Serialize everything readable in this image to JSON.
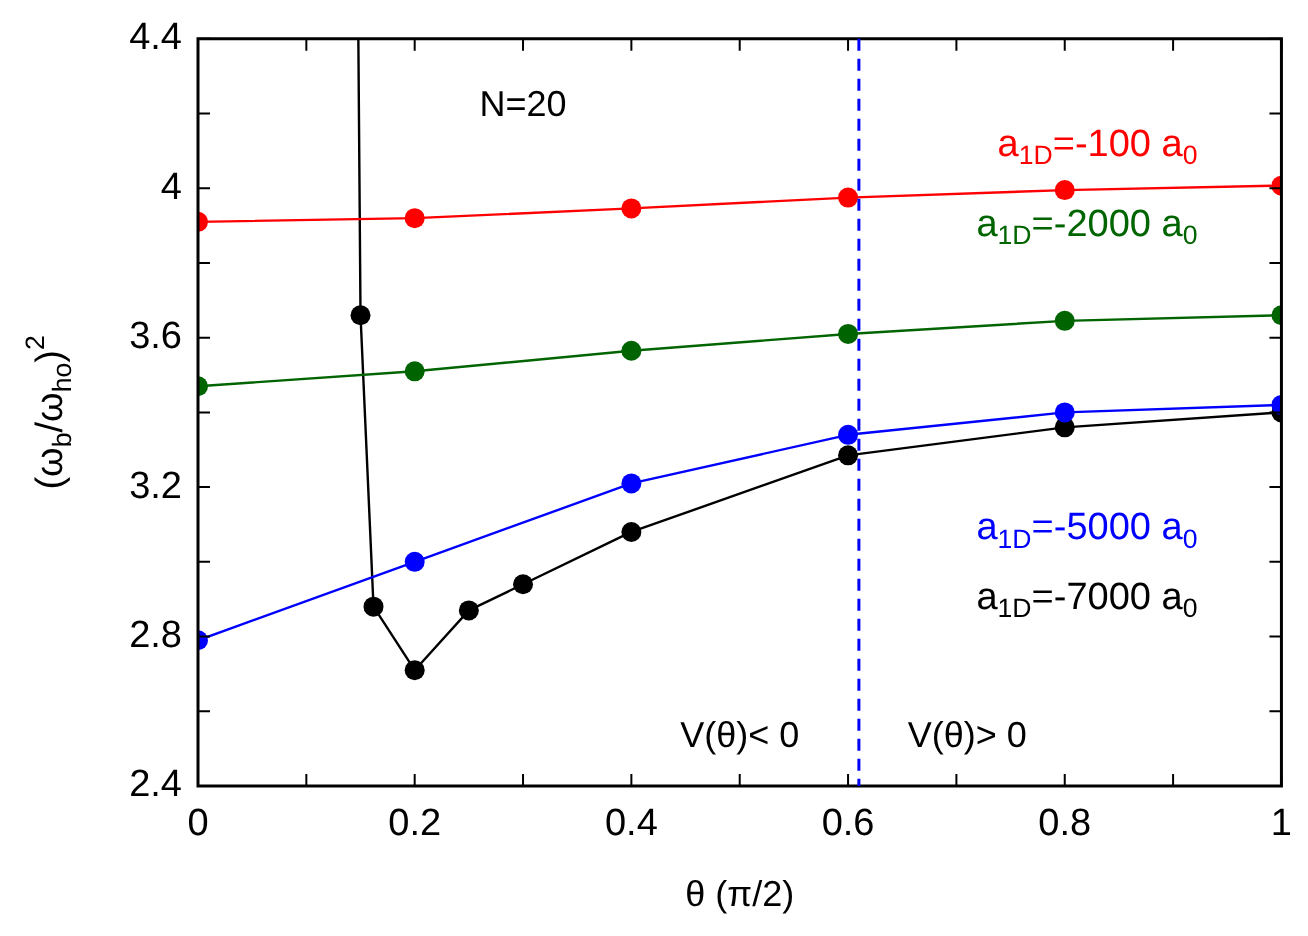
{
  "chart_data": {
    "type": "line",
    "xlabel": "θ (π/2)",
    "ylabel": "(ω$_{b}$/ω$_{ho}$)$^{2}$",
    "xlim": [
      0,
      1
    ],
    "xticks": [
      0,
      {
        "value": 0.1,
        "label": null
      },
      0.2,
      {
        "value": 0.3,
        "label": null
      },
      0.4,
      {
        "value": 0.5,
        "label": null
      },
      0.6,
      {
        "value": 0.7,
        "label": null
      },
      0.8,
      {
        "value": 0.9,
        "label": null
      },
      1
    ],
    "ylim": [
      2.4,
      4.4
    ],
    "yticks": [
      2.4,
      {
        "value": 2.6,
        "label": null
      },
      2.8,
      {
        "value": 3.0,
        "label": null
      },
      3.2,
      {
        "value": 3.4,
        "label": null
      },
      3.6,
      {
        "value": 3.8,
        "label": null
      },
      4,
      {
        "value": 4.2,
        "label": null
      },
      4.4
    ],
    "grid": false,
    "legend": "right",
    "marker": "circle",
    "line_style": "solid",
    "series": [
      {
        "name": "a$_{1D}$=-100 a$_{0}$",
        "color": "#ff0000",
        "x": [
          0,
          0.2,
          0.4,
          0.6,
          0.8,
          1
        ],
        "values": [
          3.91,
          3.92,
          3.946,
          3.975,
          3.995,
          4.007
        ]
      },
      {
        "name": "a$_{1D}$=-2000 a$_{0}$",
        "color": "#006400",
        "x": [
          0,
          0.2,
          0.4,
          0.6,
          0.8,
          1
        ],
        "values": [
          3.47,
          3.51,
          3.565,
          3.61,
          3.645,
          3.66
        ]
      },
      {
        "name": "a$_{1D}$=-5000 a$_{0}$",
        "color": "#0000ff",
        "x": [
          0,
          0.2,
          0.4,
          0.6,
          0.8,
          1
        ],
        "values": [
          2.79,
          3.0,
          3.21,
          3.34,
          3.4,
          3.42
        ]
      },
      {
        "name": "a$_{1D}$=-7000 a$_{0}$",
        "color": "#000000",
        "x": [
          0.148,
          0.15,
          0.162,
          0.2,
          0.25,
          0.3,
          0.4,
          0.6,
          0.8,
          1
        ],
        "values": [
          4.4,
          3.66,
          2.88,
          2.71,
          2.87,
          2.94,
          3.08,
          3.285,
          3.36,
          3.4
        ]
      }
    ],
    "ref_lines": [
      {
        "axis": "x",
        "value": 0.61,
        "color": "#0000ff",
        "line_style": "dashed"
      }
    ],
    "annotations": [
      "N=20",
      "V(θ)< 0",
      "V(θ)> 0"
    ]
  }
}
